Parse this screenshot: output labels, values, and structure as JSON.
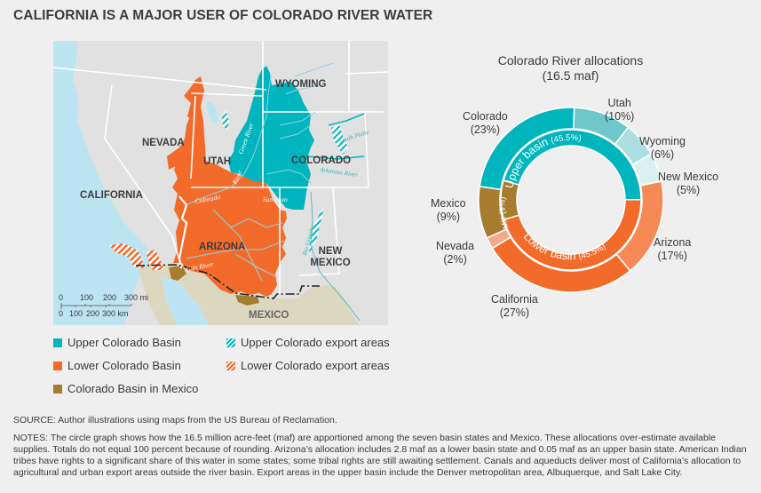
{
  "title": "CALIFORNIA IS A MAJOR USER OF COLORADO RIVER WATER",
  "map": {
    "state_labels": {
      "wyoming": "WYOMING",
      "nevada": "NEVADA",
      "utah": "UTAH",
      "colorado": "COLORADO",
      "california": "CALIFORNIA",
      "arizona": "ARIZONA",
      "new_mexico_1": "NEW",
      "new_mexico_2": "MEXICO",
      "mexico": "MEXICO"
    },
    "river_labels": {
      "green": "Green River",
      "colorado_upper": "River",
      "colorado_lower": "Colorado",
      "san_juan": "San Juan",
      "south_platte": "South Platte",
      "arkansas": "Arkansas River",
      "rio_grande": "Rio Grande",
      "gila": "Gila River"
    },
    "scale": {
      "mi_ticks": [
        "0",
        "100",
        "200",
        "300 mi"
      ],
      "km_ticks": [
        "0",
        "100",
        "200",
        "300 km"
      ]
    },
    "colors": {
      "upper_basin": "#00b5bd",
      "lower_basin": "#f26b2a",
      "mexico_basin": "#a67c2e",
      "land_us": "#e1e1e1",
      "land_mexico": "#dcd8c0",
      "water": "#bde4f2"
    }
  },
  "legend": [
    {
      "label": "Upper Colorado Basin",
      "swatch": "solid",
      "color": "#00b5bd"
    },
    {
      "label": "Upper Colorado export areas",
      "swatch": "hatch",
      "color": "#00b5bd"
    },
    {
      "label": "Lower Colorado Basin",
      "swatch": "solid",
      "color": "#f26b2a"
    },
    {
      "label": "Lower Colorado export areas",
      "swatch": "hatch",
      "color": "#f26b2a"
    },
    {
      "label": "Colorado Basin in Mexico",
      "swatch": "solid",
      "color": "#a67c2e"
    }
  ],
  "chart_data": {
    "type": "pie",
    "subtype": "nested-donut",
    "title": "Colorado River allocations",
    "subtitle": "(16.5 maf)",
    "outer_ring": {
      "categories": [
        "Utah",
        "Wyoming",
        "New Mexico",
        "Arizona",
        "California",
        "Nevada",
        "Mexico",
        "Colorado"
      ],
      "values": [
        10,
        6,
        5,
        17,
        27,
        2,
        9,
        23
      ],
      "labels": [
        "(10%)",
        "(6%)",
        "(5%)",
        "(17%)",
        "(27%)",
        "(2%)",
        "(9%)",
        "(23%)"
      ],
      "colors": [
        "#6fc7cb",
        "#acdde0",
        "#dcf0f2",
        "#f58a57",
        "#f26b2a",
        "#f6a88a",
        "#a67c2e",
        "#00b5bd"
      ]
    },
    "inner_ring": {
      "categories": [
        "Upper basin",
        "Lower basin",
        "MX"
      ],
      "values": [
        45.5,
        45.5,
        9
      ],
      "labels": [
        "(45.5%)",
        "(45.5%)",
        "(9%)"
      ],
      "colors": [
        "#00b5bd",
        "#f26b2a",
        "#a67c2e"
      ]
    },
    "units": "percent of 16.5 million acre-feet"
  },
  "source": "SOURCE: Author illustrations using maps from the US Bureau of Reclamation.",
  "notes": "NOTES: The circle graph shows how the 16.5 million acre-feet (maf) are apportioned among the seven basin states and Mexico. These allocations over-estimate available supplies. Totals do not equal 100 percent because of rounding. Arizona’s allocation includes 2.8 maf as a lower basin state and 0.05 maf as an upper basin state. American Indian tribes have rights to a significant share of this water in some states; some tribal rights are still awaiting settlement. Canals and aqueducts deliver most of California’s allocation to agricultural and urban export areas outside the river basin. Export areas in the upper basin include the Denver metropolitan area, Albuquerque, and Salt Lake City."
}
